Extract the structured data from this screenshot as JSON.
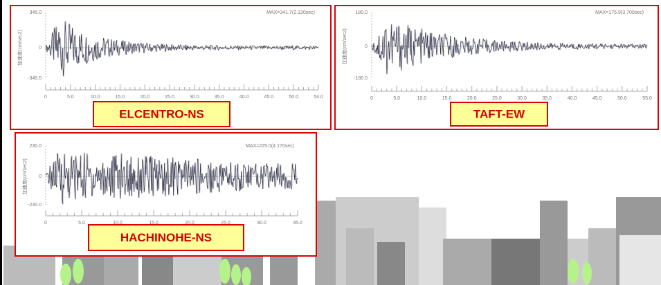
{
  "panels": [
    {
      "label": "ELCENTRO-NS",
      "max": "MAX=341.7(2.120sec)",
      "ylabel": "加速度(cm/sec2)",
      "yticks": [
        "345.0",
        "0",
        "-345.0"
      ],
      "xticks": [
        "0",
        "5.0",
        "10.0",
        "15.0",
        "20.0",
        "25.0",
        "30.0",
        "35.0",
        "40.0",
        "45.0",
        "50.0",
        "54.0"
      ]
    },
    {
      "label": "TAFT-EW",
      "max": "MAX=175.9(3.700sec)",
      "ylabel": "加速度(cm/sec2)",
      "yticks": [
        "180.0",
        "0",
        "-180.0"
      ],
      "xticks": [
        "0",
        "5.0",
        "10.0",
        "15.0",
        "20.0",
        "25.0",
        "30.0",
        "35.0",
        "40.0",
        "45.0",
        "50.0",
        "55.0"
      ]
    },
    {
      "label": "HACHINOHE-NS",
      "max": "MAX=225.0(4.170sec)",
      "ylabel": "加速度(cm/sec2)",
      "yticks": [
        "230.0",
        "0",
        "-230.0"
      ],
      "xticks": [
        "0",
        "5.0",
        "10.0",
        "15.0",
        "20.0",
        "25.0",
        "30.0",
        "35.0"
      ]
    }
  ]
}
